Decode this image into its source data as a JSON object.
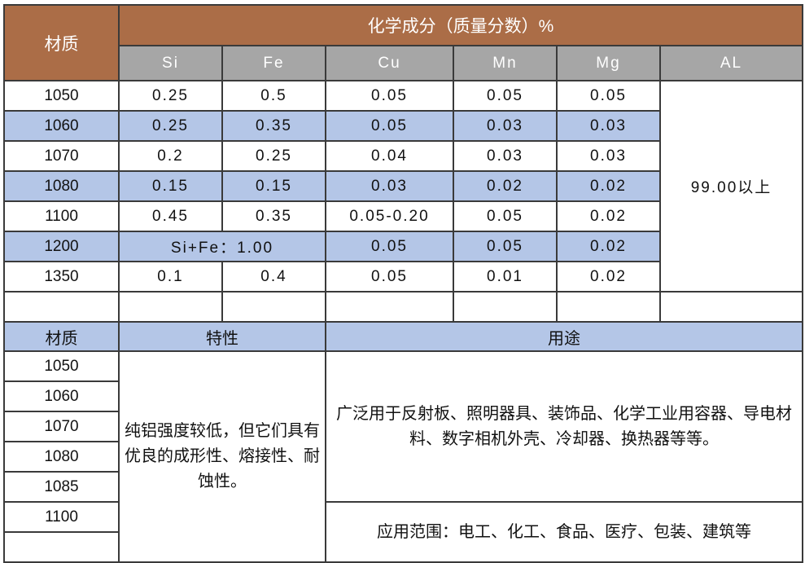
{
  "top": {
    "material_header": "材质",
    "composition_header": "化学成分（质量分数）%",
    "elements": [
      "Si",
      "Fe",
      "Cu",
      "Mn",
      "Mg",
      "AL"
    ],
    "al_value": "99.00以上",
    "rows": [
      {
        "grade": "1050",
        "si": "0.25",
        "fe": "0.5",
        "cu": "0.05",
        "mn": "0.05",
        "mg": "0.05"
      },
      {
        "grade": "1060",
        "si": "0.25",
        "fe": "0.35",
        "cu": "0.05",
        "mn": "0.03",
        "mg": "0.03"
      },
      {
        "grade": "1070",
        "si": "0.2",
        "fe": "0.25",
        "cu": "0.04",
        "mn": "0.03",
        "mg": "0.03"
      },
      {
        "grade": "1080",
        "si": "0.15",
        "fe": "0.15",
        "cu": "0.03",
        "mn": "0.02",
        "mg": "0.02"
      },
      {
        "grade": "1100",
        "si": "0.45",
        "fe": "0.35",
        "cu": "0.05-0.20",
        "mn": "0.05",
        "mg": "0.02"
      },
      {
        "grade": "1200",
        "sife": "Si+Fe：1.00",
        "cu": "0.05",
        "mn": "0.05",
        "mg": "0.02"
      },
      {
        "grade": "1350",
        "si": "0.1",
        "fe": "0.4",
        "cu": "0.05",
        "mn": "0.01",
        "mg": "0.02"
      }
    ]
  },
  "bottom": {
    "material_header": "材质",
    "property_header": "特性",
    "usage_header": "用途",
    "grades": [
      "1050",
      "1060",
      "1070",
      "1080",
      "1085",
      "1100"
    ],
    "property_text": "纯铝强度较低，但它们具有优良的成形性、熔接性、耐蚀性。",
    "usage_text": "广泛用于反射板、照明器具、装饰品、化学工业用容器、导电材料、数字相机外壳、冷却器、换热器等等。",
    "application_text": "应用范围：电工、化工、食品、医疗、包装、建筑等"
  },
  "colors": {
    "header_brown": "#AB6D47",
    "header_grey": "#A6A6A6",
    "stripe_blue": "#B4C6E7"
  }
}
